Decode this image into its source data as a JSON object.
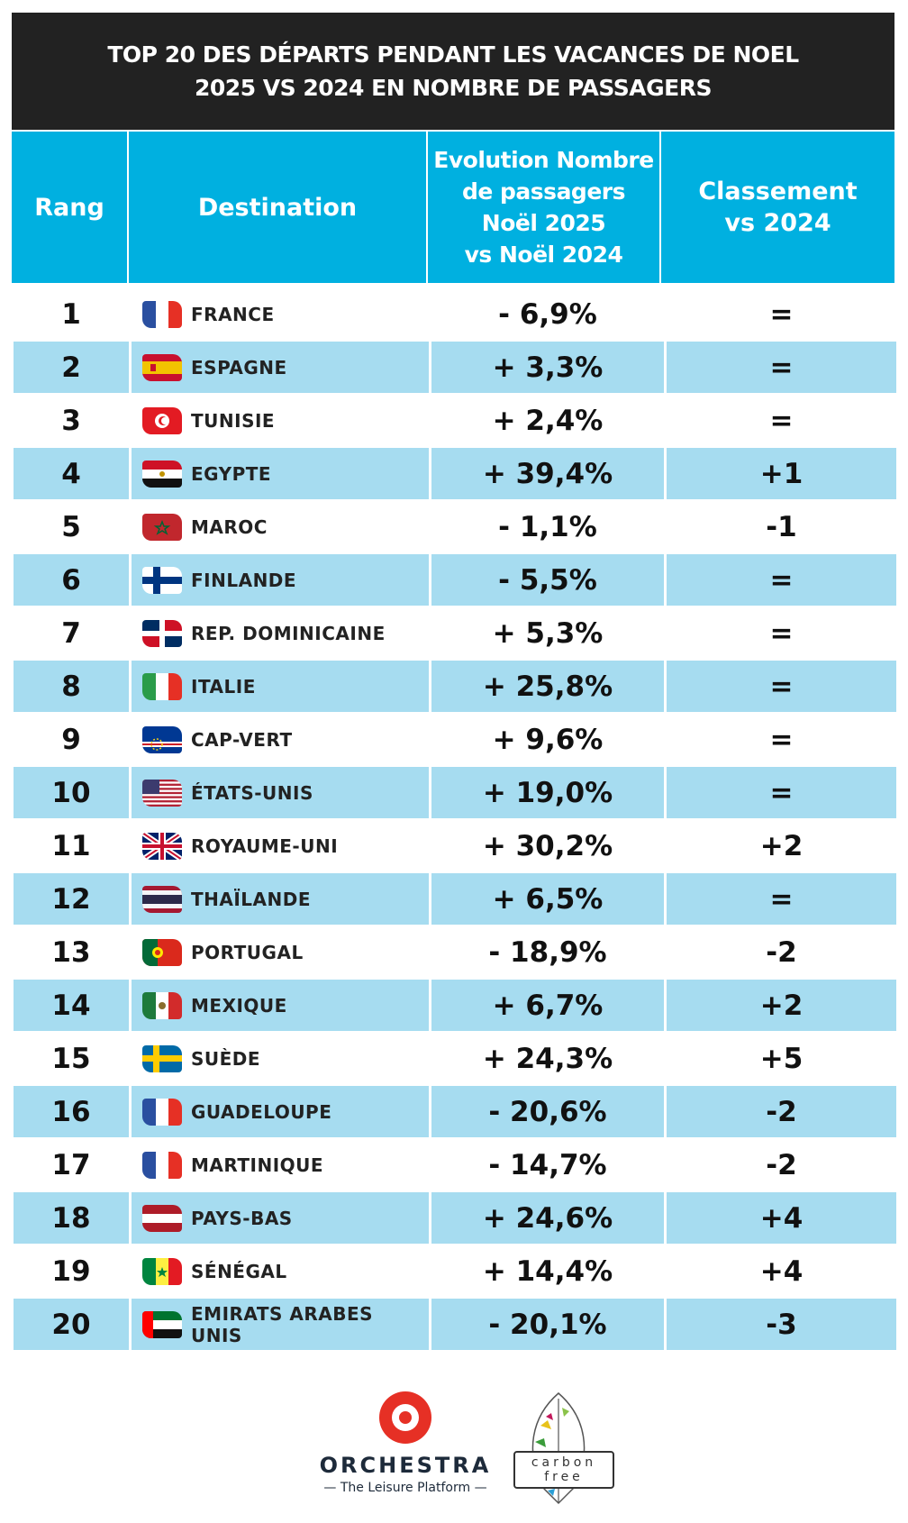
{
  "title": {
    "line1": "TOP 20 DES DÉPARTS PENDANT LES VACANCES DE NOEL",
    "line2": "2025 VS 2024 EN NOMBRE DE PASSAGERS"
  },
  "columns": {
    "rang": "Rang",
    "destination": "Destination",
    "evolution": [
      "Evolution Nombre",
      "de passagers",
      "Noël 2025",
      "vs Noël 2024"
    ],
    "classement": [
      "Classement",
      "vs 2024"
    ]
  },
  "rows": [
    {
      "rank": "1",
      "destination": "FRANCE",
      "evolution": "- 6,9%",
      "classement": "=",
      "flag": "france-flag"
    },
    {
      "rank": "2",
      "destination": "ESPAGNE",
      "evolution": "+ 3,3%",
      "classement": "=",
      "flag": "spain-flag"
    },
    {
      "rank": "3",
      "destination": "TUNISIE",
      "evolution": "+ 2,4%",
      "classement": "=",
      "flag": "tunisia-flag"
    },
    {
      "rank": "4",
      "destination": "EGYPTE",
      "evolution": "+ 39,4%",
      "classement": "+1",
      "flag": "egypt-flag"
    },
    {
      "rank": "5",
      "destination": "MAROC",
      "evolution": "- 1,1%",
      "classement": "-1",
      "flag": "morocco-flag"
    },
    {
      "rank": "6",
      "destination": "FINLANDE",
      "evolution": "- 5,5%",
      "classement": "=",
      "flag": "finland-flag"
    },
    {
      "rank": "7",
      "destination": "REP. DOMINICAINE",
      "evolution": "+ 5,3%",
      "classement": "=",
      "flag": "dominican-republic-flag"
    },
    {
      "rank": "8",
      "destination": "ITALIE",
      "evolution": "+ 25,8%",
      "classement": "=",
      "flag": "italy-flag"
    },
    {
      "rank": "9",
      "destination": "CAP-VERT",
      "evolution": "+ 9,6%",
      "classement": "=",
      "flag": "cape-verde-flag"
    },
    {
      "rank": "10",
      "destination": "ÉTATS-UNIS",
      "evolution": "+ 19,0%",
      "classement": "=",
      "flag": "usa-flag"
    },
    {
      "rank": "11",
      "destination": "ROYAUME-UNI",
      "evolution": "+ 30,2%",
      "classement": "+2",
      "flag": "uk-flag"
    },
    {
      "rank": "12",
      "destination": "THAÏLANDE",
      "evolution": "+ 6,5%",
      "classement": "=",
      "flag": "thailand-flag"
    },
    {
      "rank": "13",
      "destination": "PORTUGAL",
      "evolution": "- 18,9%",
      "classement": "-2",
      "flag": "portugal-flag"
    },
    {
      "rank": "14",
      "destination": "MEXIQUE",
      "evolution": "+ 6,7%",
      "classement": "+2",
      "flag": "mexico-flag"
    },
    {
      "rank": "15",
      "destination": "SUÈDE",
      "evolution": "+ 24,3%",
      "classement": "+5",
      "flag": "sweden-flag"
    },
    {
      "rank": "16",
      "destination": "GUADELOUPE",
      "evolution": "- 20,6%",
      "classement": "-2",
      "flag": "france-flag"
    },
    {
      "rank": "17",
      "destination": "MARTINIQUE",
      "evolution": "- 14,7%",
      "classement": "-2",
      "flag": "france-flag"
    },
    {
      "rank": "18",
      "destination": "PAYS-BAS",
      "evolution": "+ 24,6%",
      "classement": "+4",
      "flag": "netherlands-flag"
    },
    {
      "rank": "19",
      "destination": "SÉNÉGAL",
      "evolution": "+ 14,4%",
      "classement": "+4",
      "flag": "senegal-flag"
    },
    {
      "rank": "20",
      "destination": "EMIRATS ARABES UNIS",
      "evolution": "- 20,1%",
      "classement": "-3",
      "flag": "uae-flag"
    }
  ],
  "footer": {
    "brand": "ORCHESTRA",
    "tagline": "— The Leisure Platform —",
    "badge_line1": "carbon",
    "badge_line2": "free"
  },
  "colors": {
    "header_bg": "#222222",
    "column_header_bg": "#00b0e0",
    "alt_row_bg": "#a6dcf0",
    "brand_red": "#e63025"
  }
}
